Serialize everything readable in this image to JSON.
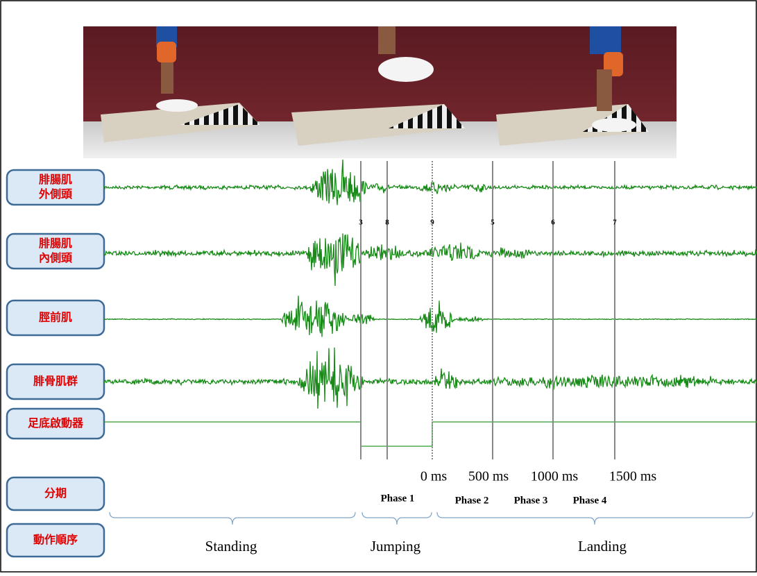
{
  "rows": {
    "muscles": [
      [
        "腓腸肌",
        "外側頭"
      ],
      [
        "腓腸肌",
        "內側頭"
      ],
      [
        "脛前肌"
      ],
      [
        "腓骨肌群"
      ],
      [
        "足底啟動器"
      ]
    ],
    "phase_row": "分期",
    "sequence_row": "動作順序"
  },
  "markers": [
    "3",
    "8",
    "9",
    "5",
    "6",
    "7"
  ],
  "times": [
    "0 ms",
    "500 ms",
    "1000 ms",
    "1500 ms"
  ],
  "phases": [
    "Phase 1",
    "Phase 2",
    "Phase 3",
    "Phase 4"
  ],
  "sequence": [
    "Standing",
    "Jumping",
    "Landing"
  ]
}
